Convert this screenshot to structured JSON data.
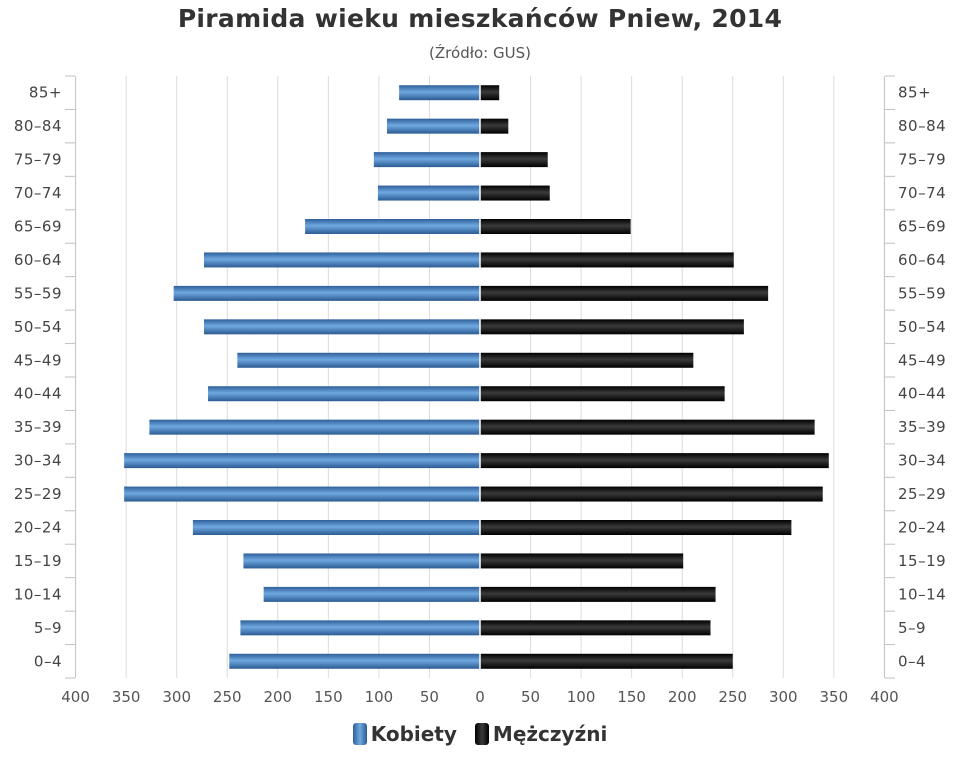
{
  "chart_data": {
    "type": "bar",
    "orientation": "horizontal",
    "title": "Piramida wieku mieszkańców Pniew, 2014",
    "subtitle": "(Źródło: GUS)",
    "categories": [
      "0–4",
      "5–9",
      "10–14",
      "15–19",
      "20–24",
      "25–29",
      "30–34",
      "35–39",
      "40–44",
      "45–49",
      "50–54",
      "55–59",
      "60–64",
      "65–69",
      "70–74",
      "75–79",
      "80–84",
      "85+"
    ],
    "series": [
      {
        "name": "Kobiety",
        "color": "#4a86c5",
        "values": [
          248,
          237,
          214,
          234,
          284,
          352,
          352,
          327,
          269,
          240,
          273,
          303,
          273,
          173,
          101,
          105,
          92,
          80
        ]
      },
      {
        "name": "Mężczyźni",
        "color": "#1a1a1a",
        "values": [
          250,
          228,
          233,
          201,
          308,
          339,
          345,
          331,
          242,
          211,
          261,
          285,
          251,
          149,
          69,
          67,
          28,
          19
        ]
      }
    ],
    "x_ticks": [
      "400",
      "350",
      "300",
      "250",
      "200",
      "150",
      "100",
      "50",
      "0",
      "50",
      "100",
      "150",
      "200",
      "250",
      "300",
      "350",
      "400"
    ],
    "xlim": [
      -400,
      400
    ],
    "grid": true,
    "legend_position": "bottom-center"
  }
}
